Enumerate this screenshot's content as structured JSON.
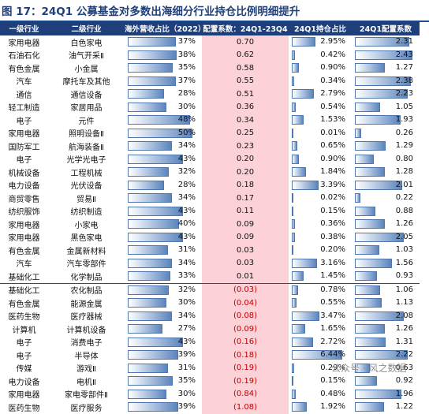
{
  "title": "图 17：24Q1 公募基金对多数出海细分行业持仓比例明细提升",
  "headers": [
    "一级行业",
    "二级行业",
    "海外营收占比（2022）",
    "配置系数：24Q1-23Q4",
    "24Q1持仓占比",
    "24Q1配置系数"
  ],
  "rows": [
    {
      "l1": "家用电器",
      "l2": "白色家电",
      "rev": "37%",
      "rev_pct": 37,
      "coef": "0.70",
      "neg": false,
      "hold": "2.95%",
      "hold_pct": 2.95,
      "cfg": "2.31",
      "cfg_val": 2.31
    },
    {
      "l1": "石油石化",
      "l2": "油气开采Ⅱ",
      "rev": "38%",
      "rev_pct": 38,
      "coef": "0.62",
      "neg": false,
      "hold": "0.42%",
      "hold_pct": 0.42,
      "cfg": "2.43",
      "cfg_val": 2.43
    },
    {
      "l1": "有色金属",
      "l2": "小金属",
      "rev": "35%",
      "rev_pct": 35,
      "coef": "0.58",
      "neg": false,
      "hold": "0.90%",
      "hold_pct": 0.9,
      "cfg": "1.27",
      "cfg_val": 1.27
    },
    {
      "l1": "汽车",
      "l2": "摩托车及其他",
      "rev": "37%",
      "rev_pct": 37,
      "coef": "0.55",
      "neg": false,
      "hold": "0.34%",
      "hold_pct": 0.34,
      "cfg": "2.38",
      "cfg_val": 2.38
    },
    {
      "l1": "通信",
      "l2": "通信设备",
      "rev": "28%",
      "rev_pct": 28,
      "coef": "0.51",
      "neg": false,
      "hold": "2.79%",
      "hold_pct": 2.79,
      "cfg": "2.23",
      "cfg_val": 2.23
    },
    {
      "l1": "轻工制造",
      "l2": "家居用品",
      "rev": "30%",
      "rev_pct": 30,
      "coef": "0.36",
      "neg": false,
      "hold": "0.54%",
      "hold_pct": 0.54,
      "cfg": "1.05",
      "cfg_val": 1.05
    },
    {
      "l1": "电子",
      "l2": "元件",
      "rev": "48%",
      "rev_pct": 48,
      "coef": "0.34",
      "neg": false,
      "hold": "1.53%",
      "hold_pct": 1.53,
      "cfg": "1.93",
      "cfg_val": 1.93
    },
    {
      "l1": "家用电器",
      "l2": "照明设备Ⅱ",
      "rev": "50%",
      "rev_pct": 50,
      "coef": "0.25",
      "neg": false,
      "hold": "0.01%",
      "hold_pct": 0.01,
      "cfg": "0.26",
      "cfg_val": 0.26
    },
    {
      "l1": "国防军工",
      "l2": "航海装备Ⅱ",
      "rev": "34%",
      "rev_pct": 34,
      "coef": "0.23",
      "neg": false,
      "hold": "0.65%",
      "hold_pct": 0.65,
      "cfg": "1.29",
      "cfg_val": 1.29
    },
    {
      "l1": "电子",
      "l2": "光学光电子",
      "rev": "43%",
      "rev_pct": 43,
      "coef": "0.20",
      "neg": false,
      "hold": "0.90%",
      "hold_pct": 0.9,
      "cfg": "0.80",
      "cfg_val": 0.8
    },
    {
      "l1": "机械设备",
      "l2": "工程机械",
      "rev": "32%",
      "rev_pct": 32,
      "coef": "0.20",
      "neg": false,
      "hold": "1.84%",
      "hold_pct": 1.84,
      "cfg": "1.28",
      "cfg_val": 1.28
    },
    {
      "l1": "电力设备",
      "l2": "光伏设备",
      "rev": "28%",
      "rev_pct": 28,
      "coef": "0.18",
      "neg": false,
      "hold": "3.39%",
      "hold_pct": 3.39,
      "cfg": "2.01",
      "cfg_val": 2.01
    },
    {
      "l1": "商贸零售",
      "l2": "贸易Ⅱ",
      "rev": "34%",
      "rev_pct": 34,
      "coef": "0.17",
      "neg": false,
      "hold": "0.02%",
      "hold_pct": 0.02,
      "cfg": "0.22",
      "cfg_val": 0.22
    },
    {
      "l1": "纺织服饰",
      "l2": "纺织制造",
      "rev": "43%",
      "rev_pct": 43,
      "coef": "0.11",
      "neg": false,
      "hold": "0.15%",
      "hold_pct": 0.15,
      "cfg": "0.88",
      "cfg_val": 0.88
    },
    {
      "l1": "家用电器",
      "l2": "小家电",
      "rev": "40%",
      "rev_pct": 40,
      "coef": "0.09",
      "neg": false,
      "hold": "0.36%",
      "hold_pct": 0.36,
      "cfg": "1.26",
      "cfg_val": 1.26
    },
    {
      "l1": "家用电器",
      "l2": "黑色家电",
      "rev": "43%",
      "rev_pct": 43,
      "coef": "0.09",
      "neg": false,
      "hold": "0.38%",
      "hold_pct": 0.38,
      "cfg": "2.05",
      "cfg_val": 2.05
    },
    {
      "l1": "有色金属",
      "l2": "金属新材料",
      "rev": "31%",
      "rev_pct": 31,
      "coef": "0.03",
      "neg": false,
      "hold": "0.20%",
      "hold_pct": 0.2,
      "cfg": "1.03",
      "cfg_val": 1.03
    },
    {
      "l1": "汽车",
      "l2": "汽车零部件",
      "rev": "34%",
      "rev_pct": 34,
      "coef": "0.03",
      "neg": false,
      "hold": "3.16%",
      "hold_pct": 3.16,
      "cfg": "1.56",
      "cfg_val": 1.56
    },
    {
      "l1": "基础化工",
      "l2": "化学制品",
      "rev": "33%",
      "rev_pct": 33,
      "coef": "0.01",
      "neg": false,
      "hold": "1.45%",
      "hold_pct": 1.45,
      "cfg": "0.93",
      "cfg_val": 0.93
    },
    {
      "l1": "基础化工",
      "l2": "农化制品",
      "rev": "32%",
      "rev_pct": 32,
      "coef": "(0.03)",
      "neg": true,
      "hold": "0.78%",
      "hold_pct": 0.78,
      "cfg": "1.06",
      "cfg_val": 1.06
    },
    {
      "l1": "有色金属",
      "l2": "能源金属",
      "rev": "30%",
      "rev_pct": 30,
      "coef": "(0.04)",
      "neg": true,
      "hold": "0.55%",
      "hold_pct": 0.55,
      "cfg": "1.13",
      "cfg_val": 1.13
    },
    {
      "l1": "医药生物",
      "l2": "医疗器械",
      "rev": "34%",
      "rev_pct": 34,
      "coef": "(0.08)",
      "neg": true,
      "hold": "3.47%",
      "hold_pct": 3.47,
      "cfg": "2.08",
      "cfg_val": 2.08
    },
    {
      "l1": "计算机",
      "l2": "计算机设备",
      "rev": "27%",
      "rev_pct": 27,
      "coef": "(0.09)",
      "neg": true,
      "hold": "1.65%",
      "hold_pct": 1.65,
      "cfg": "1.26",
      "cfg_val": 1.26
    },
    {
      "l1": "电子",
      "l2": "消费电子",
      "rev": "43%",
      "rev_pct": 43,
      "coef": "(0.16)",
      "neg": true,
      "hold": "2.72%",
      "hold_pct": 2.72,
      "cfg": "1.31",
      "cfg_val": 1.31
    },
    {
      "l1": "电子",
      "l2": "半导体",
      "rev": "39%",
      "rev_pct": 39,
      "coef": "(0.18)",
      "neg": true,
      "hold": "6.44%",
      "hold_pct": 6.44,
      "cfg": "2.22",
      "cfg_val": 2.22
    },
    {
      "l1": "传媒",
      "l2": "游戏Ⅱ",
      "rev": "31%",
      "rev_pct": 31,
      "coef": "(0.19)",
      "neg": true,
      "hold": "0.29%",
      "hold_pct": 0.29,
      "cfg": "0.63",
      "cfg_val": 0.63
    },
    {
      "l1": "电力设备",
      "l2": "电机Ⅱ",
      "rev": "35%",
      "rev_pct": 35,
      "coef": "(0.19)",
      "neg": true,
      "hold": "0.15%",
      "hold_pct": 0.15,
      "cfg": "0.92",
      "cfg_val": 0.92
    },
    {
      "l1": "家用电器",
      "l2": "家电零部件Ⅱ",
      "rev": "30%",
      "rev_pct": 30,
      "coef": "(0.84)",
      "neg": true,
      "hold": "0.48%",
      "hold_pct": 0.48,
      "cfg": "1.96",
      "cfg_val": 1.96
    },
    {
      "l1": "医药生物",
      "l2": "医疗服务",
      "rev": "39%",
      "rev_pct": 39,
      "coef": "(1.08)",
      "neg": true,
      "hold": "1.92%",
      "hold_pct": 1.92,
      "cfg": "1.22",
      "cfg_val": 1.22
    }
  ],
  "scales": {
    "rev_max": 55,
    "hold_max": 7.2,
    "cfg_max": 2.6
  },
  "watermark": "公众号 · 风之数据"
}
